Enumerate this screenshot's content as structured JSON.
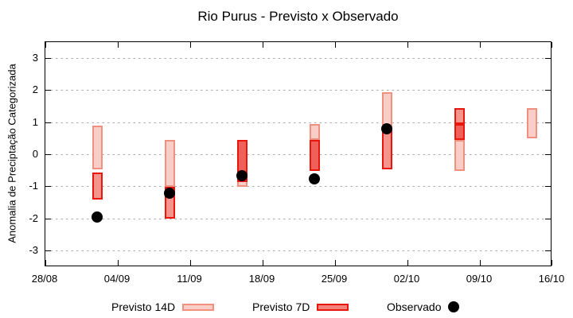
{
  "chart_data": {
    "type": "bar",
    "subtype": "forecast-range-bars-with-observed-points",
    "title": "Rio Purus - Previsto x Observado",
    "xlabel": "",
    "ylabel": "Anomalia de Preciptação Categorizada",
    "ylim": [
      -3.5,
      3.5
    ],
    "yticks": [
      3,
      2,
      1,
      0,
      -1,
      -2,
      -3
    ],
    "xtick_labels": [
      "28/08",
      "04/09",
      "11/09",
      "18/09",
      "25/09",
      "02/10",
      "09/10",
      "16/10"
    ],
    "x_axis_span_days": 49,
    "x_tick_interval_days": 7,
    "grid": {
      "horizontal_dotted": true,
      "vertical": false
    },
    "legend_position": "bottom-center",
    "bars": [
      {
        "date": "02/09",
        "day_offset": 5,
        "segments": [
          {
            "series": "Previsto 14D",
            "style": "light",
            "lo": -0.45,
            "hi": 0.9
          },
          {
            "series": "Previsto 7D",
            "style": "mid",
            "lo": -1.4,
            "hi": -0.55
          }
        ],
        "observed": -1.95
      },
      {
        "date": "09/09",
        "day_offset": 12,
        "segments": [
          {
            "series": "Previsto 14D",
            "style": "light",
            "lo": -1.0,
            "hi": 0.45
          },
          {
            "series": "Previsto 7D",
            "style": "mid",
            "lo": -2.0,
            "hi": -1.0
          }
        ],
        "observed": -1.2
      },
      {
        "date": "16/09",
        "day_offset": 19,
        "segments": [
          {
            "series": "Previsto 14D",
            "style": "light",
            "lo": -1.0,
            "hi": 0.45
          },
          {
            "series": "Previsto 7D",
            "style": "dark",
            "lo": -0.85,
            "hi": 0.45
          }
        ],
        "observed": -0.65
      },
      {
        "date": "23/09",
        "day_offset": 26,
        "segments": [
          {
            "series": "Previsto 14D",
            "style": "light",
            "lo": 0.45,
            "hi": 0.95
          },
          {
            "series": "Previsto 7D",
            "style": "dark",
            "lo": -0.5,
            "hi": 0.45
          }
        ],
        "observed": -0.75
      },
      {
        "date": "30/09",
        "day_offset": 33,
        "segments": [
          {
            "series": "Previsto 14D",
            "style": "light",
            "lo": 0.8,
            "hi": 1.95
          },
          {
            "series": "Previsto 7D",
            "style": "mid",
            "lo": -0.45,
            "hi": 0.8
          }
        ],
        "observed": 0.8
      },
      {
        "date": "07/10",
        "day_offset": 40,
        "segments": [
          {
            "series": "Previsto 14D",
            "style": "light",
            "lo": -0.5,
            "hi": 0.45
          },
          {
            "series": "Previsto 7D",
            "style": "dark",
            "lo": 0.45,
            "hi": 0.95
          },
          {
            "series": "Previsto 7D",
            "style": "mid",
            "lo": 0.95,
            "hi": 1.45
          }
        ],
        "observed": null
      },
      {
        "date": "14/10",
        "day_offset": 47,
        "segments": [
          {
            "series": "Previsto 14D",
            "style": "light",
            "lo": 0.5,
            "hi": 1.45
          }
        ],
        "observed": null
      }
    ],
    "legend": [
      {
        "label": "Previsto 14D",
        "marker": "light-pink-box"
      },
      {
        "label": "Previsto 7D",
        "marker": "red-box"
      },
      {
        "label": "Observado",
        "marker": "black-circle"
      }
    ]
  },
  "colors": {
    "forecast14_fill": "#f9cec6",
    "forecast14_border": "#f09080",
    "forecast7_fill": "#f5948c",
    "forecast7_overlap_fill": "#ee6059",
    "forecast7_border": "#e8170e",
    "observed": "#000000",
    "grid": "#a9a9a9",
    "axis": "#000000",
    "background": "#ffffff"
  }
}
